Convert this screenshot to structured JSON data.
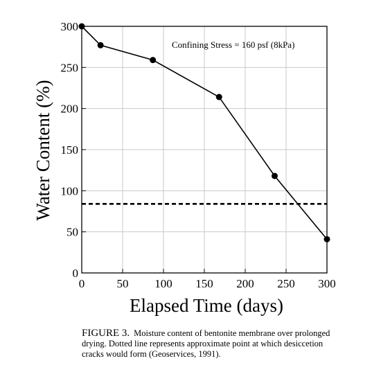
{
  "chart_data": {
    "type": "line",
    "xlabel": "Elapsed Time (days)",
    "ylabel": "Water Content (%)",
    "xlim": [
      0,
      300
    ],
    "ylim": [
      0,
      300
    ],
    "xticks": [
      "0",
      "50",
      "100",
      "150",
      "200",
      "250",
      "300"
    ],
    "yticks": [
      "0",
      "50",
      "100",
      "150",
      "200",
      "250",
      "300"
    ],
    "grid": true,
    "series": [
      {
        "x": [
          0,
          23,
          87,
          168,
          236,
          300
        ],
        "y": [
          300,
          277,
          259,
          214,
          118,
          41
        ],
        "color": "#000000",
        "markers": true
      }
    ],
    "reference_line": {
      "y": 84,
      "style": "dashed",
      "color": "#000000"
    },
    "annotation": "Confining Stress = 160 psf (8kPa)"
  },
  "caption": {
    "figure_number": "FIGURE 3.",
    "text": "Moisture content of bentonite membrane over prolonged drying. Dotted line represents approximate point at which desiccetion cracks would form (Geoservices, 1991)."
  }
}
